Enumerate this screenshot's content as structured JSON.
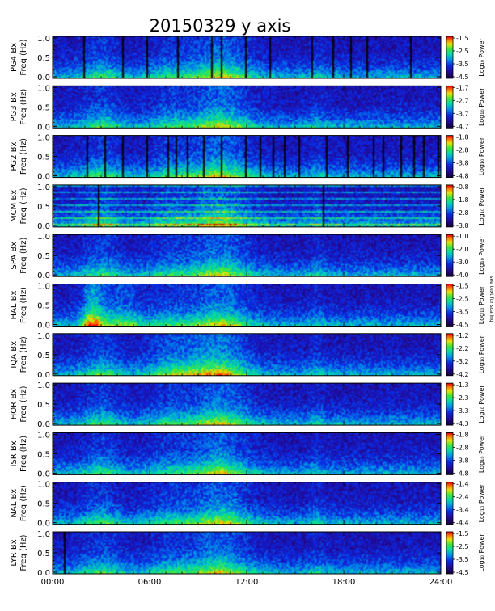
{
  "chart_data": {
    "type": "heatmap",
    "title": "20150329 y axis",
    "x_tick_labels": [
      "00:00",
      "06:00",
      "12:00",
      "18:00",
      "24:00"
    ],
    "x_range_hours": [
      0,
      24
    ],
    "ylim_hz": [
      0,
      1.0
    ],
    "y_tick_labels": [
      "0.0",
      "0.5",
      "1.0"
    ],
    "colorbar_label": "Log₁₀ Power",
    "side_note": "see text for scaling",
    "panels": [
      {
        "station": "PG4",
        "ylabel_1": "PG4  Bx",
        "ylabel_2": "Freq (Hz)",
        "cbar_ticks": [
          "-1.5",
          "-2.5",
          "-3.5",
          "-4.5"
        ],
        "cbar_range": [
          -4.5,
          -1.5
        ],
        "gaps_hours": [
          1.9,
          4.3,
          5.8,
          7.7,
          9.8,
          10.4,
          11.9,
          13.4,
          16.0,
          17.3,
          18.4,
          19.4,
          22.1
        ]
      },
      {
        "station": "PG3",
        "ylabel_1": "PG3  Bx",
        "ylabel_2": "Freq (Hz)",
        "cbar_ticks": [
          "-1.7",
          "-2.7",
          "-3.7",
          "-4.7"
        ],
        "cbar_range": [
          -4.7,
          -1.7
        ],
        "gaps_hours": []
      },
      {
        "station": "PG2",
        "ylabel_1": "PG2  Bx",
        "ylabel_2": "Freq (Hz)",
        "cbar_ticks": [
          "-1.8",
          "-2.8",
          "-3.8",
          "-4.8"
        ],
        "cbar_range": [
          -4.8,
          -1.8
        ],
        "gaps_hours": [
          2.1,
          3.2,
          4.3,
          5.8,
          7.1,
          7.6,
          8.3,
          9.3,
          10.4,
          11.9,
          12.8,
          13.6,
          14.3,
          15.2,
          16.9,
          18.2,
          19.8,
          20.4,
          21.5,
          22.3,
          22.9,
          23.8
        ]
      },
      {
        "station": "MCM",
        "ylabel_1": "MCM  Bx",
        "ylabel_2": "Freq (Hz)",
        "cbar_ticks": [
          "-0.8",
          "-1.8",
          "-2.8",
          "-3.8"
        ],
        "cbar_range": [
          -3.8,
          -0.8
        ],
        "gaps_hours": [
          2.8,
          16.7
        ]
      },
      {
        "station": "SPA",
        "ylabel_1": "SPA  Bx",
        "ylabel_2": "Freq (Hz)",
        "cbar_ticks": [
          "-1.0",
          "-2.0",
          "-3.0",
          "-4.0"
        ],
        "cbar_range": [
          -4.0,
          -1.0
        ],
        "gaps_hours": []
      },
      {
        "station": "HAL",
        "ylabel_1": "HAL  Bx",
        "ylabel_2": "Freq (Hz)",
        "cbar_ticks": [
          "-1.5",
          "-2.5",
          "-3.5",
          "-4.5"
        ],
        "cbar_range": [
          -4.5,
          -1.5
        ],
        "gaps_hours": []
      },
      {
        "station": "IQA",
        "ylabel_1": "IQA  Bx",
        "ylabel_2": "Freq (Hz)",
        "cbar_ticks": [
          "-1.2",
          "-2.2",
          "-3.2",
          "-4.2"
        ],
        "cbar_range": [
          -4.2,
          -1.2
        ],
        "gaps_hours": []
      },
      {
        "station": "HOR",
        "ylabel_1": "HOR  Bx",
        "ylabel_2": "Freq (Hz)",
        "cbar_ticks": [
          "-1.3",
          "-2.3",
          "-3.3",
          "-4.3"
        ],
        "cbar_range": [
          -4.3,
          -1.3
        ],
        "gaps_hours": []
      },
      {
        "station": "ISR",
        "ylabel_1": "ISR  Bx",
        "ylabel_2": "Freq (Hz)",
        "cbar_ticks": [
          "-1.8",
          "-2.8",
          "-3.8",
          "-4.8"
        ],
        "cbar_range": [
          -4.8,
          -1.8
        ],
        "gaps_hours": []
      },
      {
        "station": "NAL",
        "ylabel_1": "NAL  Bx",
        "ylabel_2": "Freq (Hz)",
        "cbar_ticks": [
          "-1.4",
          "-2.4",
          "-3.4",
          "-4.4"
        ],
        "cbar_range": [
          -4.4,
          -1.4
        ],
        "gaps_hours": []
      },
      {
        "station": "LYR",
        "ylabel_1": "LYR  Bx",
        "ylabel_2": "Freq (Hz)",
        "cbar_ticks": [
          "-1.5",
          "-2.5",
          "-3.5",
          "-4.5"
        ],
        "cbar_range": [
          -4.5,
          -1.5
        ],
        "gaps_hours": [
          0.7
        ]
      }
    ]
  }
}
